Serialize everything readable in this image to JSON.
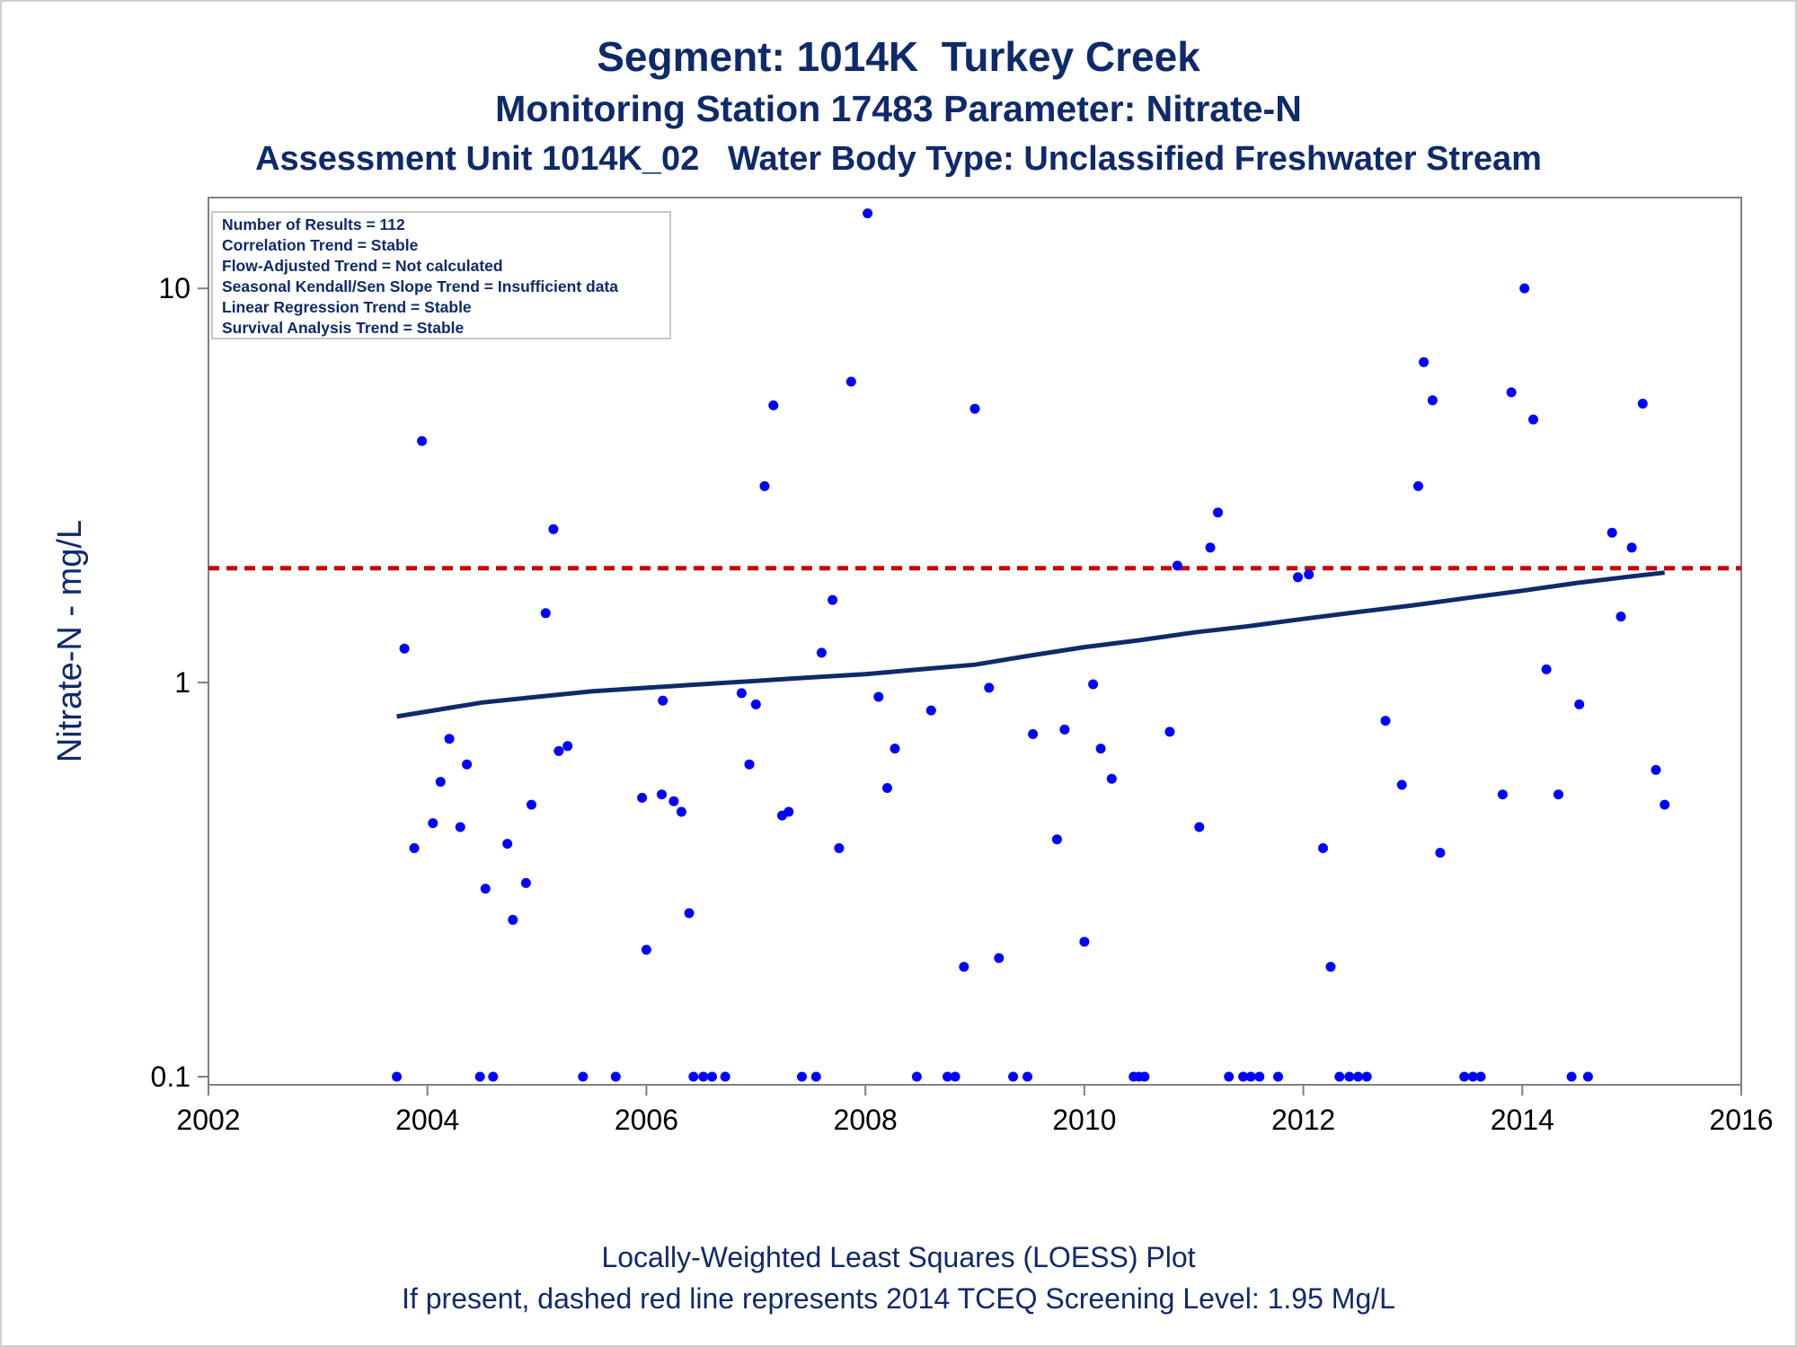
{
  "titles": {
    "line1": "Segment: 1014K  Turkey Creek",
    "line2": "Monitoring Station 17483 Parameter: Nitrate-N",
    "line3": "Assessment Unit 1014K_02   Water Body Type: Unclassified Freshwater Stream"
  },
  "footnotes": {
    "line1": "Locally-Weighted Least Squares (LOESS) Plot",
    "line2": "If present, dashed red line represents 2014 TCEQ Screening Level: 1.95 Mg/L"
  },
  "info_box": [
    "Number of Results = 112",
    "Correlation Trend = Stable",
    "Flow-Adjusted Trend = Not calculated",
    "Seasonal Kendall/Sen Slope Trend = Insufficient data",
    "Linear Regression Trend = Stable",
    "Survival Analysis Trend = Stable"
  ],
  "colors": {
    "points": "#0000ff",
    "loess": "#0f2a6b",
    "screening": "#cc0000",
    "axis": "#808080",
    "text": "#0f2a6b"
  },
  "chart_data": {
    "type": "scatter",
    "title": "Segment: 1014K  Turkey Creek",
    "xlabel": "",
    "ylabel": "Nitrate-N - mg/L",
    "xlim": [
      2002,
      2016
    ],
    "ylim": [
      0.1,
      17
    ],
    "y_scale": "log",
    "x_ticks": [
      2002,
      2004,
      2006,
      2008,
      2010,
      2012,
      2014,
      2016
    ],
    "x_tick_labels": [
      "2002",
      "2004",
      "2006",
      "2008",
      "2010",
      "2012",
      "2014",
      "2016"
    ],
    "y_ticks": [
      0.1,
      1,
      10
    ],
    "y_tick_labels": [
      "0.1",
      "1",
      "10"
    ],
    "grid": false,
    "legend": "none",
    "screening_level": {
      "value": 1.95
    },
    "points": [
      {
        "x": 2003.72,
        "y": 0.1
      },
      {
        "x": 2003.79,
        "y": 1.22
      },
      {
        "x": 2003.88,
        "y": 0.38
      },
      {
        "x": 2003.95,
        "y": 4.1
      },
      {
        "x": 2004.05,
        "y": 0.44
      },
      {
        "x": 2004.12,
        "y": 0.56
      },
      {
        "x": 2004.2,
        "y": 0.72
      },
      {
        "x": 2004.3,
        "y": 0.43
      },
      {
        "x": 2004.36,
        "y": 0.62
      },
      {
        "x": 2004.48,
        "y": 0.1
      },
      {
        "x": 2004.53,
        "y": 0.3
      },
      {
        "x": 2004.6,
        "y": 0.1
      },
      {
        "x": 2004.73,
        "y": 0.39
      },
      {
        "x": 2004.78,
        "y": 0.25
      },
      {
        "x": 2004.9,
        "y": 0.31
      },
      {
        "x": 2004.95,
        "y": 0.49
      },
      {
        "x": 2005.08,
        "y": 1.5
      },
      {
        "x": 2005.15,
        "y": 2.45
      },
      {
        "x": 2005.2,
        "y": 0.67
      },
      {
        "x": 2005.28,
        "y": 0.69
      },
      {
        "x": 2005.42,
        "y": 0.1
      },
      {
        "x": 2005.72,
        "y": 0.1
      },
      {
        "x": 2005.96,
        "y": 0.51
      },
      {
        "x": 2006.0,
        "y": 0.21
      },
      {
        "x": 2006.14,
        "y": 0.52
      },
      {
        "x": 2006.15,
        "y": 0.9
      },
      {
        "x": 2006.25,
        "y": 0.5
      },
      {
        "x": 2006.32,
        "y": 0.47
      },
      {
        "x": 2006.39,
        "y": 0.26
      },
      {
        "x": 2006.43,
        "y": 0.1
      },
      {
        "x": 2006.52,
        "y": 0.1
      },
      {
        "x": 2006.6,
        "y": 0.1
      },
      {
        "x": 2006.72,
        "y": 0.1
      },
      {
        "x": 2006.87,
        "y": 0.94
      },
      {
        "x": 2006.94,
        "y": 0.62
      },
      {
        "x": 2007.0,
        "y": 0.88
      },
      {
        "x": 2007.08,
        "y": 3.15
      },
      {
        "x": 2007.16,
        "y": 5.05
      },
      {
        "x": 2007.24,
        "y": 0.46
      },
      {
        "x": 2007.3,
        "y": 0.47
      },
      {
        "x": 2007.42,
        "y": 0.1
      },
      {
        "x": 2007.55,
        "y": 0.1
      },
      {
        "x": 2007.6,
        "y": 1.19
      },
      {
        "x": 2007.7,
        "y": 1.62
      },
      {
        "x": 2007.76,
        "y": 0.38
      },
      {
        "x": 2007.87,
        "y": 5.8
      },
      {
        "x": 2008.02,
        "y": 15.5
      },
      {
        "x": 2008.12,
        "y": 0.92
      },
      {
        "x": 2008.2,
        "y": 0.54
      },
      {
        "x": 2008.27,
        "y": 0.68
      },
      {
        "x": 2008.47,
        "y": 0.1
      },
      {
        "x": 2008.6,
        "y": 0.85
      },
      {
        "x": 2008.75,
        "y": 0.1
      },
      {
        "x": 2008.82,
        "y": 0.1
      },
      {
        "x": 2008.9,
        "y": 0.19
      },
      {
        "x": 2009.0,
        "y": 4.95
      },
      {
        "x": 2009.13,
        "y": 0.97
      },
      {
        "x": 2009.22,
        "y": 0.2
      },
      {
        "x": 2009.35,
        "y": 0.1
      },
      {
        "x": 2009.48,
        "y": 0.1
      },
      {
        "x": 2009.53,
        "y": 0.74
      },
      {
        "x": 2009.75,
        "y": 0.4
      },
      {
        "x": 2009.82,
        "y": 0.76
      },
      {
        "x": 2010.0,
        "y": 0.22
      },
      {
        "x": 2010.08,
        "y": 0.99
      },
      {
        "x": 2010.15,
        "y": 0.68
      },
      {
        "x": 2010.25,
        "y": 0.57
      },
      {
        "x": 2010.45,
        "y": 0.1
      },
      {
        "x": 2010.5,
        "y": 0.1
      },
      {
        "x": 2010.55,
        "y": 0.1
      },
      {
        "x": 2010.78,
        "y": 0.75
      },
      {
        "x": 2010.85,
        "y": 1.98
      },
      {
        "x": 2011.05,
        "y": 0.43
      },
      {
        "x": 2011.15,
        "y": 2.2
      },
      {
        "x": 2011.22,
        "y": 2.7
      },
      {
        "x": 2011.32,
        "y": 0.1
      },
      {
        "x": 2011.45,
        "y": 0.1
      },
      {
        "x": 2011.52,
        "y": 0.1
      },
      {
        "x": 2011.6,
        "y": 0.1
      },
      {
        "x": 2011.77,
        "y": 0.1
      },
      {
        "x": 2011.95,
        "y": 1.85
      },
      {
        "x": 2012.05,
        "y": 1.88
      },
      {
        "x": 2012.18,
        "y": 0.38
      },
      {
        "x": 2012.25,
        "y": 0.19
      },
      {
        "x": 2012.33,
        "y": 0.1
      },
      {
        "x": 2012.42,
        "y": 0.1
      },
      {
        "x": 2012.5,
        "y": 0.1
      },
      {
        "x": 2012.58,
        "y": 0.1
      },
      {
        "x": 2012.75,
        "y": 0.8
      },
      {
        "x": 2012.9,
        "y": 0.55
      },
      {
        "x": 2013.05,
        "y": 3.15
      },
      {
        "x": 2013.1,
        "y": 6.5
      },
      {
        "x": 2013.18,
        "y": 5.2
      },
      {
        "x": 2013.25,
        "y": 0.37
      },
      {
        "x": 2013.47,
        "y": 0.1
      },
      {
        "x": 2013.55,
        "y": 0.1
      },
      {
        "x": 2013.62,
        "y": 0.1
      },
      {
        "x": 2013.82,
        "y": 0.52
      },
      {
        "x": 2013.9,
        "y": 5.45
      },
      {
        "x": 2014.02,
        "y": 10.0
      },
      {
        "x": 2014.1,
        "y": 4.65
      },
      {
        "x": 2014.22,
        "y": 1.08
      },
      {
        "x": 2014.33,
        "y": 0.52
      },
      {
        "x": 2014.45,
        "y": 0.1
      },
      {
        "x": 2014.52,
        "y": 0.88
      },
      {
        "x": 2014.6,
        "y": 0.1
      },
      {
        "x": 2014.82,
        "y": 2.4
      },
      {
        "x": 2014.9,
        "y": 1.47
      },
      {
        "x": 2015.0,
        "y": 2.2
      },
      {
        "x": 2015.1,
        "y": 5.1
      },
      {
        "x": 2015.22,
        "y": 0.6
      },
      {
        "x": 2015.3,
        "y": 0.49
      }
    ],
    "loess": {
      "x": [
        2003.72,
        2004.5,
        2005.0,
        2005.5,
        2006.0,
        2006.5,
        2007.0,
        2007.5,
        2008.0,
        2008.5,
        2009.0,
        2009.5,
        2010.0,
        2010.5,
        2011.0,
        2011.5,
        2012.0,
        2012.5,
        2013.0,
        2013.5,
        2014.0,
        2014.5,
        2015.0,
        2015.3
      ],
      "y": [
        0.82,
        0.89,
        0.92,
        0.95,
        0.97,
        0.99,
        1.01,
        1.03,
        1.05,
        1.08,
        1.11,
        1.17,
        1.23,
        1.28,
        1.34,
        1.39,
        1.45,
        1.51,
        1.57,
        1.64,
        1.71,
        1.79,
        1.86,
        1.9
      ]
    }
  }
}
